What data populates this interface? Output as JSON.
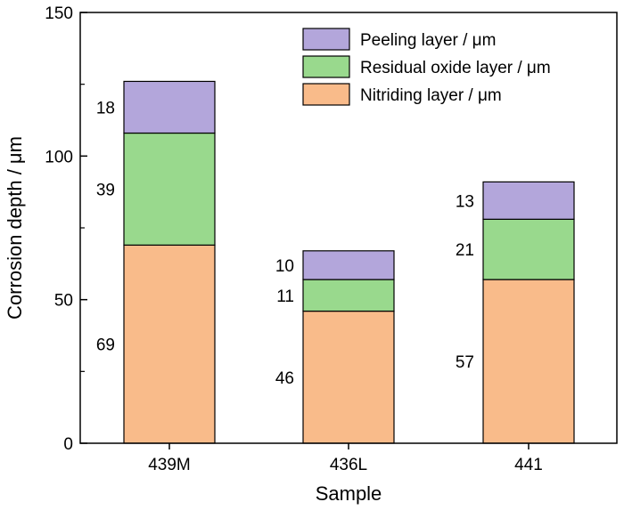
{
  "chart_data": {
    "type": "bar",
    "stacked": true,
    "categories": [
      "439M",
      "436L",
      "441"
    ],
    "series": [
      {
        "name": "Nitriding layer / μm",
        "values": [
          69,
          46,
          57
        ],
        "color": "#F9BB8A"
      },
      {
        "name": "Residual oxide layer / μm",
        "values": [
          39,
          11,
          21
        ],
        "color": "#99D98D"
      },
      {
        "name": "Peeling layer / μm",
        "values": [
          18,
          10,
          13
        ],
        "color": "#B3A6DB"
      }
    ],
    "legend_order": [
      2,
      1,
      0
    ],
    "title": "",
    "xlabel": "Sample",
    "ylabel": "Corrosion depth / μm",
    "ylim": [
      0,
      150
    ],
    "yticks": [
      0,
      50,
      100,
      150
    ],
    "grid": false,
    "legend_position": "top-right"
  }
}
